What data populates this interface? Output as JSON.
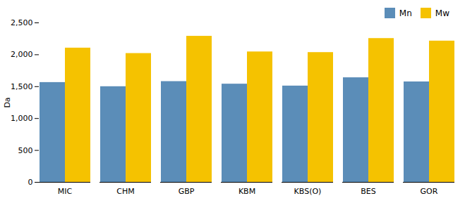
{
  "chart_data": {
    "type": "bar",
    "categories": [
      "MIC",
      "CHM",
      "GBP",
      "KBM",
      "KBS(O)",
      "BES",
      "GOR"
    ],
    "series": [
      {
        "name": "Mn",
        "color": "#5b8db8",
        "values": [
          1565,
          1500,
          1580,
          1540,
          1510,
          1640,
          1575
        ]
      },
      {
        "name": "Mw",
        "color": "#f5c200",
        "values": [
          2105,
          2020,
          2290,
          2045,
          2035,
          2255,
          2215
        ]
      }
    ],
    "ylabel": "Da",
    "ylim": [
      0,
      2500
    ],
    "yticks": [
      0,
      500,
      1000,
      1500,
      2000,
      2500
    ],
    "grid": false,
    "legend": "upper right"
  }
}
